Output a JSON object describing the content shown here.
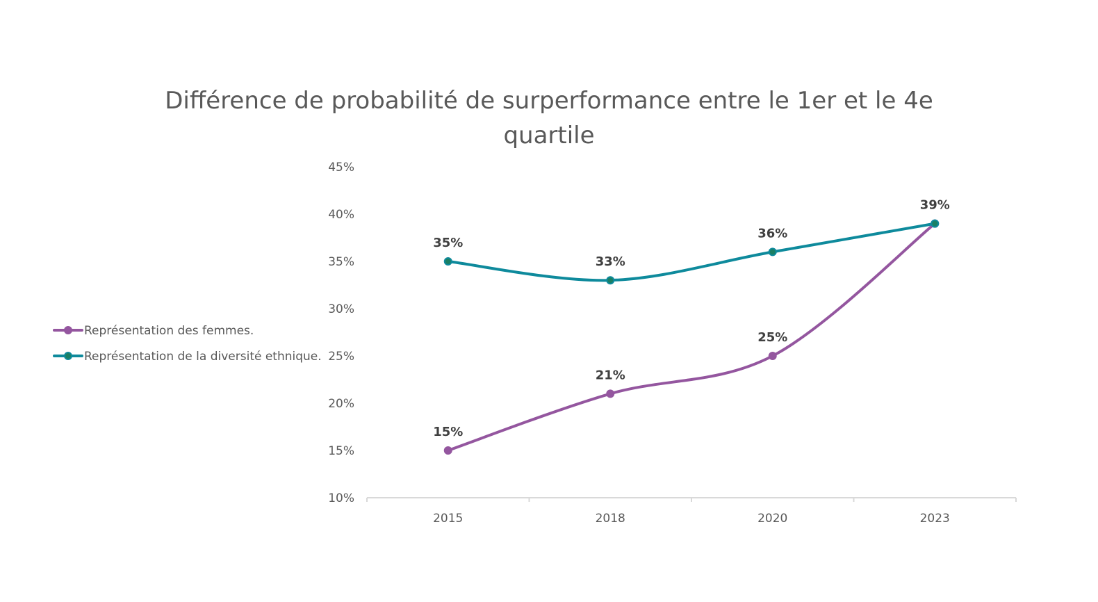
{
  "chart_data": {
    "type": "line",
    "title": "Différence de probabilité de surperformance entre le 1er et le 4e quartile",
    "categories": [
      "2015",
      "2018",
      "2020",
      "2023"
    ],
    "series": [
      {
        "name": "Représentation des femmes.",
        "values": [
          15,
          21,
          25,
          39
        ],
        "labels": [
          "15%",
          "21%",
          "25%",
          "39%"
        ],
        "show_labels": [
          true,
          true,
          true,
          false
        ],
        "color": "#94569F",
        "marker_color": "#94569F"
      },
      {
        "name": "Représentation de la diversité ethnique.",
        "values": [
          35,
          33,
          36,
          39
        ],
        "labels": [
          "35%",
          "33%",
          "36%",
          "39%"
        ],
        "show_labels": [
          true,
          true,
          true,
          true
        ],
        "color": "#0E8A9C",
        "marker_color": "#1A7F64"
      }
    ],
    "y_ticks": [
      "10%",
      "15%",
      "20%",
      "25%",
      "30%",
      "35%",
      "40%",
      "45%"
    ],
    "y_tick_values": [
      10,
      15,
      20,
      25,
      30,
      35,
      40,
      45
    ],
    "ylim": [
      10,
      45
    ],
    "xlabel": "",
    "ylabel": "",
    "grid": false,
    "smooth": true,
    "legend_position": "left",
    "axis_color": "#D9D9D9"
  }
}
